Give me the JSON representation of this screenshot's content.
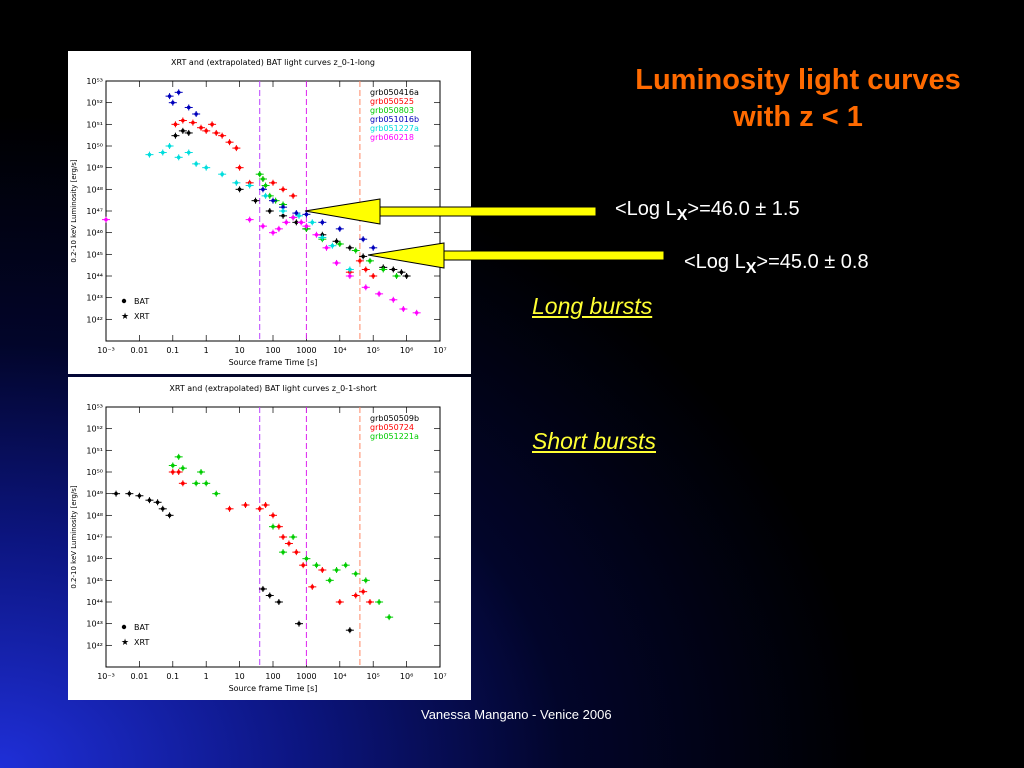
{
  "slide": {
    "title_line1": "Luminosity light curves",
    "title_line2": "with z < 1",
    "stat_long_prefix": "<Log L",
    "stat_long_sub": "X",
    "stat_long_value": ">=46.0 ± 1.5",
    "stat_short_prefix": "<Log L",
    "stat_short_sub": "X",
    "stat_short_value": ">=45.0 ± 0.8",
    "long_label": "Long bursts",
    "short_label": "Short bursts",
    "footer": "Vanessa Mangano - Venice 2006"
  },
  "colors": {
    "background": "#000000",
    "title": "#ff6a00",
    "label": "#ffff33",
    "arrow": "#ffff00",
    "vline_purple": "#bb44ff",
    "vline_magenta": "#dd22ee",
    "vline_salmon": "#ff8866"
  },
  "chart_data": [
    {
      "type": "scatter",
      "title": "XRT and (extrapolated) BAT light curves z_0-1-long",
      "xlabel": "Source frame Time [s]",
      "ylabel": "0.2-10 keV Luminosity [erg/s]",
      "x_scale": "log",
      "y_scale": "log",
      "xlim": [
        0.001,
        10000000
      ],
      "ylim": [
        1e+41,
        1e+53
      ],
      "x_ticks": [
        "10⁻³",
        "0.01",
        "0.1",
        "1",
        "10",
        "100",
        "1000",
        "10⁴",
        "10⁵",
        "10⁶",
        "10⁷"
      ],
      "y_ticks": [
        "10⁴²",
        "10⁴³",
        "10⁴⁴",
        "10⁴⁵",
        "10⁴⁶",
        "10⁴⁷",
        "10⁴⁸",
        "10⁴⁹",
        "10⁵⁰",
        "10⁵¹",
        "10⁵²",
        "10⁵³"
      ],
      "legend": [
        "BAT",
        "XRT"
      ],
      "vlines": [
        {
          "x": 40,
          "color": "#bb44ff"
        },
        {
          "x": 1000,
          "color": "#dd22ee"
        },
        {
          "x": 40000,
          "color": "#ff8866"
        }
      ],
      "series": [
        {
          "name": "grb050416a",
          "color": "#000000",
          "points": [
            [
              0.12,
              3e+50
            ],
            [
              0.2,
              5e+50
            ],
            [
              0.3,
              4e+50
            ],
            [
              10,
              1e+48
            ],
            [
              30,
              3e+47
            ],
            [
              80,
              1e+47
            ],
            [
              200,
              6e+46
            ],
            [
              500,
              3e+46
            ],
            [
              1000,
              1.5e+46
            ],
            [
              3000,
              8e+45
            ],
            [
              8000,
              4e+45
            ],
            [
              20000,
              2e+45
            ],
            [
              50000,
              8e+44
            ],
            [
              200000,
              2.5e+44
            ],
            [
              400000,
              2e+44
            ],
            [
              700000,
              1.5e+44
            ],
            [
              1000000,
              1e+44
            ]
          ]
        },
        {
          "name": "grb050525",
          "color": "#ff0000",
          "points": [
            [
              0.12,
              1e+51
            ],
            [
              0.2,
              1.5e+51
            ],
            [
              0.4,
              1.2e+51
            ],
            [
              0.7,
              7e+50
            ],
            [
              1,
              5e+50
            ],
            [
              1.5,
              1e+51
            ],
            [
              2,
              4e+50
            ],
            [
              3,
              3e+50
            ],
            [
              5,
              1.5e+50
            ],
            [
              8,
              8e+49
            ],
            [
              10,
              1e+49
            ],
            [
              20,
              2e+48
            ],
            [
              50,
              3e+48
            ],
            [
              100,
              2e+48
            ],
            [
              200,
              1e+48
            ],
            [
              400,
              5e+47
            ],
            [
              20000,
              1.5e+44
            ],
            [
              40000,
              5e+44
            ],
            [
              60000,
              2e+44
            ],
            [
              100000,
              1e+44
            ]
          ]
        },
        {
          "name": "grb050803",
          "color": "#00cc00",
          "points": [
            [
              40,
              5e+48
            ],
            [
              50,
              3e+48
            ],
            [
              60,
              1.5e+48
            ],
            [
              80,
              5e+47
            ],
            [
              120,
              3e+47
            ],
            [
              200,
              2e+47
            ],
            [
              400,
              5e+46
            ],
            [
              1000,
              1.5e+46
            ],
            [
              3000,
              5e+45
            ],
            [
              10000,
              3e+45
            ],
            [
              30000,
              1.5e+45
            ],
            [
              80000,
              5e+44
            ],
            [
              200000,
              2e+44
            ],
            [
              500000,
              1e+44
            ]
          ]
        },
        {
          "name": "grb051016b",
          "color": "#0000bb",
          "points": [
            [
              0.08,
              2e+52
            ],
            [
              0.1,
              1e+52
            ],
            [
              0.15,
              3e+52
            ],
            [
              0.3,
              6e+51
            ],
            [
              0.5,
              3e+51
            ],
            [
              50,
              1e+48
            ],
            [
              100,
              3e+47
            ],
            [
              200,
              1.5e+47
            ],
            [
              500,
              8e+46
            ],
            [
              1000,
              7e+46
            ],
            [
              3000,
              3e+46
            ],
            [
              10000,
              1.5e+46
            ],
            [
              50000,
              5e+45
            ],
            [
              100000,
              2e+45
            ]
          ]
        },
        {
          "name": "grb051227a",
          "color": "#00dddd",
          "points": [
            [
              0.02,
              4e+49
            ],
            [
              0.05,
              5e+49
            ],
            [
              0.08,
              1e+50
            ],
            [
              0.15,
              3e+49
            ],
            [
              0.3,
              5e+49
            ],
            [
              0.5,
              1.5e+49
            ],
            [
              1,
              1e+49
            ],
            [
              3,
              5e+48
            ],
            [
              8,
              2e+48
            ],
            [
              20,
              1.5e+48
            ],
            [
              60,
              5e+47
            ],
            [
              200,
              1e+47
            ],
            [
              600,
              6e+46
            ],
            [
              1500,
              3e+46
            ],
            [
              3000,
              6e+45
            ],
            [
              6000,
              2.5e+45
            ],
            [
              20000,
              2e+44
            ]
          ]
        },
        {
          "name": "grb060218",
          "color": "#ff00ff",
          "points": [
            [
              0.001,
              4e+46
            ],
            [
              20,
              4e+46
            ],
            [
              50,
              2e+46
            ],
            [
              100,
              1e+46
            ],
            [
              150,
              1.5e+46
            ],
            [
              250,
              3e+46
            ],
            [
              400,
              5e+46
            ],
            [
              700,
              3e+46
            ],
            [
              1000,
              2e+46
            ],
            [
              2000,
              8e+45
            ],
            [
              4000,
              2e+45
            ],
            [
              8000,
              4e+44
            ],
            [
              20000,
              1e+44
            ],
            [
              60000,
              3e+43
            ],
            [
              150000,
              1.5e+43
            ],
            [
              400000,
              8e+42
            ],
            [
              800000,
              3e+42
            ],
            [
              2000000,
              2e+42
            ]
          ]
        }
      ]
    },
    {
      "type": "scatter",
      "title": "XRT and (extrapolated) BAT light curves z_0-1-short",
      "xlabel": "Source frame Time [s]",
      "ylabel": "0.2-10 keV Luminosity [erg/s]",
      "x_scale": "log",
      "y_scale": "log",
      "xlim": [
        0.001,
        10000000
      ],
      "ylim": [
        1e+41,
        1e+53
      ],
      "x_ticks": [
        "10⁻³",
        "0.01",
        "0.1",
        "1",
        "10",
        "100",
        "1000",
        "10⁴",
        "10⁵",
        "10⁶",
        "10⁷"
      ],
      "y_ticks": [
        "10⁴²",
        "10⁴³",
        "10⁴⁴",
        "10⁴⁵",
        "10⁴⁶",
        "10⁴⁷",
        "10⁴⁸",
        "10⁴⁹",
        "10⁵⁰",
        "10⁵¹",
        "10⁵²",
        "10⁵³"
      ],
      "legend": [
        "BAT",
        "XRT"
      ],
      "vlines": [
        {
          "x": 40,
          "color": "#bb44ff"
        },
        {
          "x": 1000,
          "color": "#dd22ee"
        },
        {
          "x": 40000,
          "color": "#ff8866"
        }
      ],
      "series": [
        {
          "name": "grb050509b",
          "color": "#000000",
          "points": [
            [
              0.002,
              1e+49
            ],
            [
              0.005,
              1e+49
            ],
            [
              0.01,
              8e+48
            ],
            [
              0.02,
              5e+48
            ],
            [
              0.035,
              4e+48
            ],
            [
              0.05,
              2e+48
            ],
            [
              0.08,
              1e+48
            ],
            [
              50,
              4e+44
            ],
            [
              80,
              2e+44
            ],
            [
              150,
              1e+44
            ],
            [
              600,
              1e+43
            ],
            [
              20000,
              5e+42
            ]
          ]
        },
        {
          "name": "grb050724",
          "color": "#ff0000",
          "points": [
            [
              0.1,
              1e+50
            ],
            [
              0.15,
              1e+50
            ],
            [
              0.2,
              3e+49
            ],
            [
              5,
              2e+48
            ],
            [
              15,
              3e+48
            ],
            [
              40,
              2e+48
            ],
            [
              60,
              3e+48
            ],
            [
              100,
              1e+48
            ],
            [
              150,
              3e+47
            ],
            [
              200,
              1e+47
            ],
            [
              300,
              5e+46
            ],
            [
              500,
              2e+46
            ],
            [
              800,
              5e+45
            ],
            [
              1500,
              5e+44
            ],
            [
              3000,
              3e+45
            ],
            [
              10000,
              1e+44
            ],
            [
              30000,
              2e+44
            ],
            [
              50000,
              3e+44
            ],
            [
              80000,
              1e+44
            ]
          ]
        },
        {
          "name": "grb051221a",
          "color": "#00cc00",
          "points": [
            [
              0.1,
              2e+50
            ],
            [
              0.15,
              5e+50
            ],
            [
              0.2,
              1.5e+50
            ],
            [
              0.5,
              3e+49
            ],
            [
              0.7,
              1e+50
            ],
            [
              1,
              3e+49
            ],
            [
              2,
              1e+49
            ],
            [
              100,
              3e+47
            ],
            [
              200,
              2e+46
            ],
            [
              400,
              1e+47
            ],
            [
              1000,
              1e+46
            ],
            [
              2000,
              5e+45
            ],
            [
              5000,
              1e+45
            ],
            [
              8000,
              3e+45
            ],
            [
              15000,
              5e+45
            ],
            [
              30000,
              2e+45
            ],
            [
              60000,
              1e+45
            ],
            [
              150000,
              1e+44
            ],
            [
              300000,
              2e+43
            ]
          ]
        }
      ]
    }
  ]
}
